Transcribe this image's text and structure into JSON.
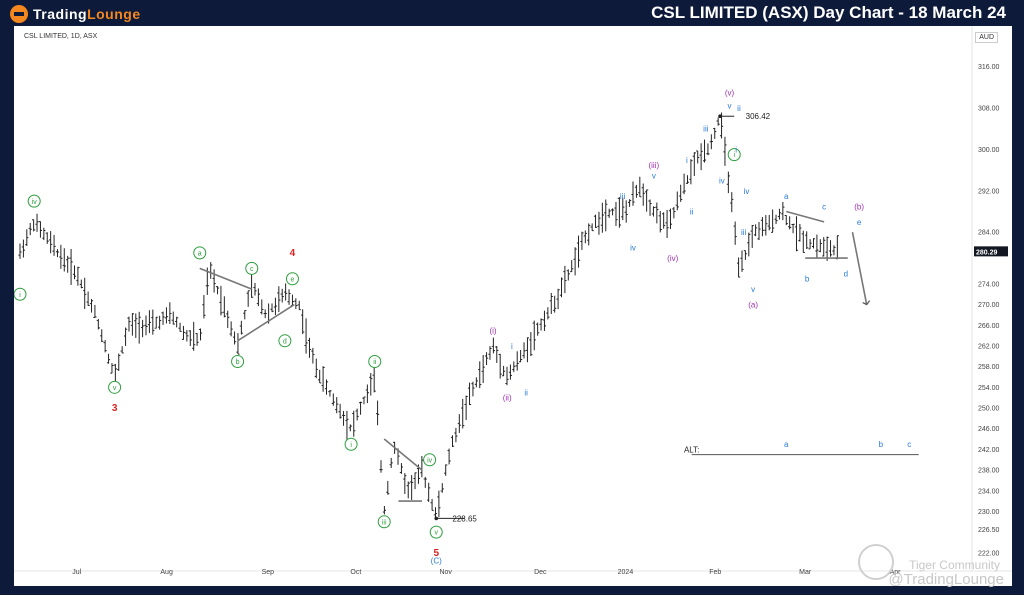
{
  "header": {
    "logo_plain": "Trading",
    "logo_accent": "Lounge",
    "headline": "CSL LIMITED (ASX) Day Chart - 18 March 24"
  },
  "panel": {
    "symbol_line": "CSL LIMITED, 1D, ASX",
    "currency": "AUD"
  },
  "watermarks": {
    "community": "Tiger Community",
    "handle": "@TradingLounge"
  },
  "chart_data": {
    "type": "ohlc",
    "ylim": [
      221,
      320
    ],
    "y_ticks": [
      316.0,
      308.0,
      300.0,
      292.0,
      284.0,
      280.29,
      274.0,
      270.0,
      266.0,
      262.0,
      258.0,
      254.0,
      250.0,
      246.0,
      242.0,
      238.0,
      234.0,
      230.0,
      226.5,
      222.0
    ],
    "y_tick_labels": [
      "316.00",
      "308.00",
      "300.00",
      "292.00",
      "284.00",
      "280.29",
      "274.00",
      "270.00",
      "266.00",
      "262.00",
      "258.00",
      "254.00",
      "250.00",
      "246.00",
      "242.00",
      "238.00",
      "234.00",
      "230.00",
      "226.50",
      "222.00"
    ],
    "last_price": 280.29,
    "x_labels": [
      "Jul",
      "Aug",
      "Sep",
      "Oct",
      "Nov",
      "Dec",
      "2024",
      "Feb",
      "Mar",
      "Apr"
    ],
    "x_label_pos": [
      0.06,
      0.155,
      0.262,
      0.355,
      0.45,
      0.55,
      0.64,
      0.735,
      0.83,
      0.925
    ],
    "anchors": [
      [
        0.0,
        280
      ],
      [
        0.015,
        286
      ],
      [
        0.04,
        280
      ],
      [
        0.06,
        276
      ],
      [
        0.08,
        268
      ],
      [
        0.1,
        256
      ],
      [
        0.115,
        266
      ],
      [
        0.14,
        266
      ],
      [
        0.16,
        268
      ],
      [
        0.175,
        264
      ],
      [
        0.19,
        263
      ],
      [
        0.2,
        277
      ],
      [
        0.215,
        270
      ],
      [
        0.23,
        262
      ],
      [
        0.245,
        274
      ],
      [
        0.26,
        268
      ],
      [
        0.28,
        272
      ],
      [
        0.295,
        270
      ],
      [
        0.305,
        262
      ],
      [
        0.315,
        257
      ],
      [
        0.33,
        252
      ],
      [
        0.35,
        246
      ],
      [
        0.365,
        252
      ],
      [
        0.375,
        256
      ],
      [
        0.385,
        230
      ],
      [
        0.395,
        243
      ],
      [
        0.41,
        234
      ],
      [
        0.425,
        238
      ],
      [
        0.44,
        229
      ],
      [
        0.455,
        242
      ],
      [
        0.47,
        250
      ],
      [
        0.485,
        256
      ],
      [
        0.5,
        262
      ],
      [
        0.515,
        256
      ],
      [
        0.53,
        260
      ],
      [
        0.55,
        266
      ],
      [
        0.57,
        272
      ],
      [
        0.585,
        278
      ],
      [
        0.6,
        284
      ],
      [
        0.62,
        288
      ],
      [
        0.64,
        288
      ],
      [
        0.655,
        293
      ],
      [
        0.67,
        288
      ],
      [
        0.685,
        285
      ],
      [
        0.7,
        292
      ],
      [
        0.715,
        298
      ],
      [
        0.73,
        301
      ],
      [
        0.74,
        306.42
      ],
      [
        0.752,
        290
      ],
      [
        0.76,
        276
      ],
      [
        0.775,
        284
      ],
      [
        0.79,
        285
      ],
      [
        0.805,
        288
      ],
      [
        0.82,
        284
      ],
      [
        0.835,
        282
      ],
      [
        0.85,
        281
      ],
      [
        0.865,
        280.29
      ]
    ],
    "annotations": [
      {
        "text": "i",
        "x": 0.0,
        "y": 272,
        "circled": true,
        "color": "#2e9e3e"
      },
      {
        "text": "iv",
        "x": 0.015,
        "y": 290,
        "circled": true,
        "color": "#2e9e3e"
      },
      {
        "text": "v",
        "x": 0.1,
        "y": 254,
        "circled": true,
        "color": "#2e9e3e"
      },
      {
        "text": "3",
        "x": 0.1,
        "y": 250,
        "circled": false,
        "color": "#e02020"
      },
      {
        "text": "a",
        "x": 0.19,
        "y": 280,
        "circled": true,
        "color": "#2e9e3e"
      },
      {
        "text": "b",
        "x": 0.23,
        "y": 259,
        "circled": true,
        "color": "#2e9e3e"
      },
      {
        "text": "c",
        "x": 0.245,
        "y": 277,
        "circled": true,
        "color": "#2e9e3e"
      },
      {
        "text": "d",
        "x": 0.28,
        "y": 263,
        "circled": true,
        "color": "#2e9e3e"
      },
      {
        "text": "e",
        "x": 0.288,
        "y": 275,
        "circled": true,
        "color": "#2e9e3e"
      },
      {
        "text": "4",
        "x": 0.288,
        "y": 280,
        "circled": false,
        "color": "#e02020"
      },
      {
        "text": "ii",
        "x": 0.375,
        "y": 259,
        "circled": true,
        "color": "#2e9e3e"
      },
      {
        "text": "i",
        "x": 0.35,
        "y": 243,
        "circled": true,
        "color": "#2e9e3e"
      },
      {
        "text": "iii",
        "x": 0.385,
        "y": 228,
        "circled": true,
        "color": "#2e9e3e"
      },
      {
        "text": "iv",
        "x": 0.433,
        "y": 240,
        "circled": true,
        "color": "#2e9e3e"
      },
      {
        "text": "v",
        "x": 0.44,
        "y": 226,
        "circled": true,
        "color": "#2e9e3e"
      },
      {
        "text": "5",
        "x": 0.44,
        "y": 222,
        "circled": false,
        "color": "#e02020"
      },
      {
        "text": "228.65",
        "x": 0.47,
        "y": 228.65,
        "circled": false,
        "color": "#222222"
      },
      {
        "text": "(i)",
        "x": 0.5,
        "y": 265,
        "circled": false,
        "color": "#a030b0"
      },
      {
        "text": "i",
        "x": 0.52,
        "y": 262,
        "circled": false,
        "color": "#2a7ad8"
      },
      {
        "text": "(ii)",
        "x": 0.515,
        "y": 252,
        "circled": false,
        "color": "#a030b0"
      },
      {
        "text": "ii",
        "x": 0.535,
        "y": 253,
        "circled": false,
        "color": "#2a7ad8"
      },
      {
        "text": "iii",
        "x": 0.637,
        "y": 291,
        "circled": false,
        "color": "#2a7ad8"
      },
      {
        "text": "iv",
        "x": 0.648,
        "y": 281,
        "circled": false,
        "color": "#2a7ad8"
      },
      {
        "text": "(iii)",
        "x": 0.67,
        "y": 297,
        "circled": false,
        "color": "#a030b0"
      },
      {
        "text": "v",
        "x": 0.67,
        "y": 295,
        "circled": false,
        "color": "#2a7ad8"
      },
      {
        "text": "(iv)",
        "x": 0.69,
        "y": 279,
        "circled": false,
        "color": "#a030b0"
      },
      {
        "text": "i",
        "x": 0.705,
        "y": 298,
        "circled": false,
        "color": "#2a7ad8"
      },
      {
        "text": "ii",
        "x": 0.71,
        "y": 288,
        "circled": false,
        "color": "#2a7ad8"
      },
      {
        "text": "iii",
        "x": 0.725,
        "y": 304,
        "circled": false,
        "color": "#2a7ad8"
      },
      {
        "text": "iv",
        "x": 0.742,
        "y": 294,
        "circled": false,
        "color": "#2a7ad8"
      },
      {
        "text": "i",
        "x": 0.755,
        "y": 299,
        "circled": true,
        "color": "#2e9e3e"
      },
      {
        "text": "(v)",
        "x": 0.75,
        "y": 311,
        "circled": false,
        "color": "#a030b0"
      },
      {
        "text": "v",
        "x": 0.75,
        "y": 308.5,
        "circled": false,
        "color": "#2a7ad8"
      },
      {
        "text": "ii",
        "x": 0.76,
        "y": 308,
        "circled": false,
        "color": "#2a7ad8"
      },
      {
        "text": "i",
        "x": 0.757,
        "y": 300,
        "circled": false,
        "color": "#2a7ad8"
      },
      {
        "text": "306.42",
        "x": 0.78,
        "y": 306.42,
        "circled": false,
        "color": "#222222"
      },
      {
        "text": "iv",
        "x": 0.768,
        "y": 292,
        "circled": false,
        "color": "#2a7ad8"
      },
      {
        "text": "iii",
        "x": 0.765,
        "y": 284,
        "circled": false,
        "color": "#2a7ad8"
      },
      {
        "text": "v",
        "x": 0.775,
        "y": 273,
        "circled": false,
        "color": "#2a7ad8"
      },
      {
        "text": "(a)",
        "x": 0.775,
        "y": 270,
        "circled": false,
        "color": "#a030b0"
      },
      {
        "text": "a",
        "x": 0.81,
        "y": 291,
        "circled": false,
        "color": "#2a7ad8"
      },
      {
        "text": "b",
        "x": 0.832,
        "y": 275,
        "circled": false,
        "color": "#2a7ad8"
      },
      {
        "text": "c",
        "x": 0.85,
        "y": 289,
        "circled": false,
        "color": "#2a7ad8"
      },
      {
        "text": "d",
        "x": 0.873,
        "y": 276,
        "circled": false,
        "color": "#2a7ad8"
      },
      {
        "text": "(b)",
        "x": 0.887,
        "y": 289,
        "circled": false,
        "color": "#a030b0"
      },
      {
        "text": "e",
        "x": 0.887,
        "y": 286,
        "circled": false,
        "color": "#2a7ad8"
      },
      {
        "text": "ALT:",
        "x": 0.71,
        "y": 242,
        "circled": false,
        "color": "#222222"
      },
      {
        "text": "a",
        "x": 0.81,
        "y": 243,
        "circled": false,
        "color": "#2a7ad8"
      },
      {
        "text": "b",
        "x": 0.91,
        "y": 243,
        "circled": false,
        "color": "#2a7ad8"
      },
      {
        "text": "c",
        "x": 0.94,
        "y": 243,
        "circled": false,
        "color": "#2a7ad8"
      },
      {
        "text": "(C)",
        "x": 0.44,
        "y": 220.5,
        "circled": false,
        "color": "#2a7ad8"
      }
    ],
    "trendlines": [
      [
        [
          0.19,
          277
        ],
        [
          0.245,
          273
        ]
      ],
      [
        [
          0.23,
          263
        ],
        [
          0.29,
          270
        ]
      ],
      [
        [
          0.385,
          244
        ],
        [
          0.425,
          238
        ]
      ],
      [
        [
          0.4,
          232
        ],
        [
          0.425,
          232
        ]
      ],
      [
        [
          0.81,
          288
        ],
        [
          0.85,
          286
        ]
      ],
      [
        [
          0.83,
          279
        ],
        [
          0.875,
          279
        ]
      ],
      [
        [
          0.88,
          284
        ],
        [
          0.895,
          270
        ]
      ],
      [
        [
          0.71,
          241
        ],
        [
          0.95,
          241
        ]
      ]
    ],
    "price_markers": [
      {
        "x": 0.44,
        "y": 228.65,
        "to_x": 0.47
      },
      {
        "x": 0.74,
        "y": 306.42,
        "to_x": 0.755
      }
    ]
  }
}
